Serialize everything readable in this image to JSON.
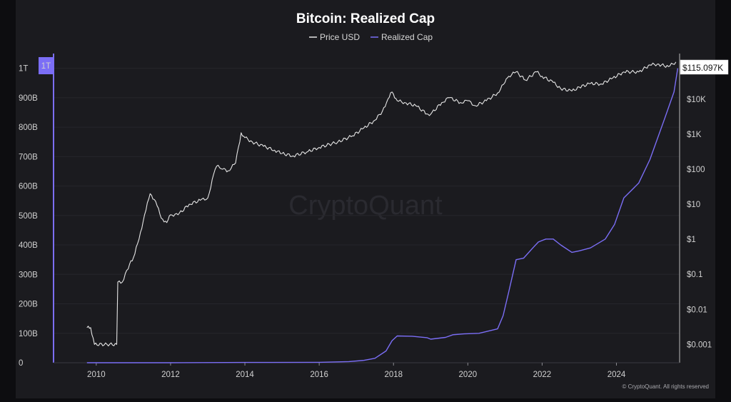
{
  "chart_data": {
    "type": "line",
    "title": "Bitcoin: Realized Cap",
    "legend": {
      "placement": "top-center"
    },
    "series": [
      {
        "name": "Price USD",
        "axis": "right",
        "color": "#e6e6e6",
        "x": [
          2009.75,
          2009.85,
          2009.95,
          2010.55,
          2010.58,
          2010.7,
          2010.9,
          2011.0,
          2011.15,
          2011.3,
          2011.45,
          2011.6,
          2011.75,
          2011.9,
          2012.0,
          2012.2,
          2012.5,
          2012.8,
          2013.0,
          2013.2,
          2013.28,
          2013.4,
          2013.55,
          2013.75,
          2013.9,
          2014.0,
          2014.2,
          2014.5,
          2014.8,
          2015.0,
          2015.3,
          2015.7,
          2016.0,
          2016.5,
          2016.9,
          2017.2,
          2017.5,
          2017.7,
          2017.85,
          2017.96,
          2018.1,
          2018.3,
          2018.6,
          2018.9,
          2019.0,
          2019.3,
          2019.5,
          2019.8,
          2020.0,
          2020.2,
          2020.5,
          2020.8,
          2021.0,
          2021.1,
          2021.3,
          2021.55,
          2021.85,
          2022.0,
          2022.3,
          2022.5,
          2022.8,
          2023.0,
          2023.3,
          2023.6,
          2023.9,
          2024.2,
          2024.6,
          2024.9,
          2025.1,
          2025.4,
          2025.6
        ],
        "values": [
          0.003,
          0.003,
          0.001,
          0.001,
          0.06,
          0.06,
          0.2,
          0.3,
          1.0,
          5,
          20,
          12,
          4,
          3,
          5,
          5,
          10,
          13,
          15,
          100,
          130,
          100,
          90,
          150,
          1100,
          800,
          600,
          450,
          350,
          280,
          240,
          320,
          420,
          600,
          900,
          1500,
          2500,
          4500,
          10000,
          16000,
          9000,
          8000,
          6500,
          3800,
          3700,
          8000,
          11000,
          8000,
          9000,
          6500,
          9000,
          15000,
          30000,
          45000,
          60000,
          35000,
          60000,
          45000,
          30000,
          20000,
          17000,
          22000,
          28000,
          27000,
          40000,
          60000,
          60000,
          95000,
          100000,
          85000,
          115097
        ]
      },
      {
        "name": "Realized Cap",
        "axis": "left",
        "color": "#7b6ef6",
        "x": [
          2009.75,
          2012.0,
          2013.5,
          2014.0,
          2016.0,
          2016.8,
          2017.2,
          2017.5,
          2017.8,
          2017.96,
          2018.1,
          2018.5,
          2018.9,
          2019.0,
          2019.4,
          2019.6,
          2019.9,
          2020.3,
          2020.8,
          2020.95,
          2021.1,
          2021.3,
          2021.5,
          2021.75,
          2021.9,
          2022.1,
          2022.3,
          2022.5,
          2022.8,
          2023.0,
          2023.3,
          2023.7,
          2023.95,
          2024.2,
          2024.6,
          2024.9,
          2025.3,
          2025.55,
          2025.65
        ],
        "values": [
          0,
          0.1,
          0.7,
          1,
          1.5,
          4,
          8,
          15,
          40,
          75,
          91,
          90,
          85,
          80,
          86,
          95,
          98,
          100,
          115,
          160,
          240,
          350,
          355,
          390,
          410,
          420,
          420,
          400,
          375,
          380,
          390,
          420,
          470,
          560,
          610,
          690,
          830,
          920,
          1000
        ]
      }
    ],
    "x_axis": {
      "min": 2008.85,
      "max": 2025.7,
      "ticks": [
        2010,
        2012,
        2014,
        2016,
        2018,
        2020,
        2022,
        2024
      ],
      "tick_labels": [
        "2010",
        "2012",
        "2014",
        "2016",
        "2018",
        "2020",
        "2022",
        "2024"
      ]
    },
    "y_left": {
      "unit": "USD",
      "ylim": [
        0,
        1050000000000
      ],
      "ticks": [
        0,
        100000000000,
        200000000000,
        300000000000,
        400000000000,
        500000000000,
        600000000000,
        700000000000,
        800000000000,
        900000000000,
        1000000000000
      ],
      "tick_labels": [
        "0",
        "100B",
        "200B",
        "300B",
        "400B",
        "500B",
        "600B",
        "700B",
        "800B",
        "900B",
        "1T"
      ],
      "highlight_label": "1T"
    },
    "y_right": {
      "scale": "log",
      "ylim": [
        0.0003,
        200000
      ],
      "ticks": [
        0.001,
        0.01,
        0.1,
        1,
        10,
        100,
        1000,
        10000
      ],
      "tick_labels": [
        "$0.001",
        "$0.01",
        "$0.1",
        "$1",
        "$10",
        "$100",
        "$1K",
        "$10K"
      ],
      "last_value_label": "$115.097K"
    },
    "grid": true,
    "watermark": "CryptoQuant",
    "footer": "© CryptoQuant. All rights reserved"
  }
}
